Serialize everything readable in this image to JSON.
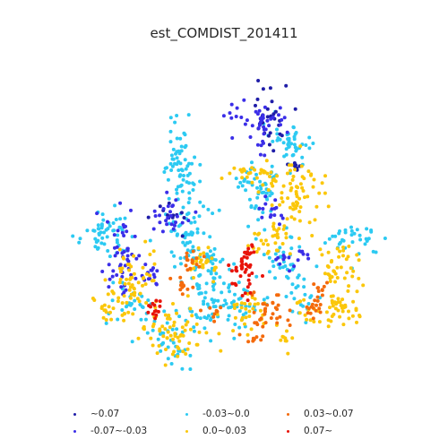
{
  "title": "est_COMDIST_201411",
  "classes": [
    {
      "label": "~0.07",
      "color": "#1f1da8"
    },
    {
      "label": "-0.07~-0.03",
      "color": "#3b2ee8"
    },
    {
      "label": "-0.03~0.0",
      "color": "#2ccaf2"
    },
    {
      "label": "0.0~0.03",
      "color": "#fbc70a"
    },
    {
      "label": "0.03~0.07",
      "color": "#f46a0c"
    },
    {
      "label": "0.07~",
      "color": "#e8140a"
    }
  ]
}
